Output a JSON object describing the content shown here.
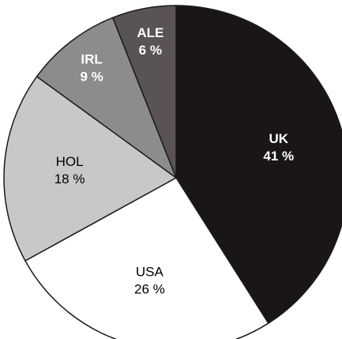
{
  "chart_data": {
    "type": "pie",
    "title": "",
    "slices": [
      {
        "label": "UK",
        "value": 41,
        "value_text": "41 %",
        "color": "#1a1616",
        "text_color": "#ffffff",
        "bold": true
      },
      {
        "label": "USA",
        "value": 26,
        "value_text": "26 %",
        "color": "#ffffff",
        "text_color": "#000000",
        "bold": false
      },
      {
        "label": "HOL",
        "value": 18,
        "value_text": "18 %",
        "color": "#c8c8c8",
        "text_color": "#000000",
        "bold": false
      },
      {
        "label": "IRL",
        "value": 9,
        "value_text": "9 %",
        "color": "#8c8c8c",
        "text_color": "#ffffff",
        "bold": true
      },
      {
        "label": "ALE",
        "value": 6,
        "value_text": "6 %",
        "color": "#5a5353",
        "text_color": "#ffffff",
        "bold": true
      }
    ],
    "start_angle": "top",
    "direction": "clockwise",
    "legend": "none"
  }
}
